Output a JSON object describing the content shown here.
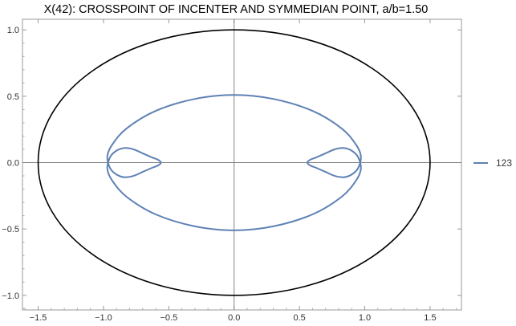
{
  "chart_data": {
    "type": "line",
    "title": "X(42): CROSSPOINT OF INCENTER AND SYMMEDIAN POINT, a/b=1.50",
    "xlabel": "",
    "ylabel": "",
    "xlim": [
      -1.62,
      1.74
    ],
    "ylim": [
      -1.11,
      1.08
    ],
    "x_ticks": [
      -1.5,
      -1.0,
      -0.5,
      0.0,
      0.5,
      1.0,
      1.5
    ],
    "x_tick_labels": [
      "−1.5",
      "−1.0",
      "−0.5",
      "0.0",
      "0.5",
      "1.0",
      "1.5"
    ],
    "y_ticks": [
      -1.0,
      -0.5,
      0.0,
      0.5,
      1.0
    ],
    "y_tick_labels": [
      "−1.0",
      "−0.5",
      "0.0",
      "0.5",
      "1.0"
    ],
    "grid": false,
    "frame": true,
    "axes_through_origin": true,
    "legend_position": "right",
    "colors": {
      "outer_ellipse": "#000000",
      "locus": "#5e81b5",
      "axes": "#808080",
      "frame": "#999999"
    },
    "series": [
      {
        "name": "",
        "role": "outer ellipse",
        "color": "#000000",
        "shape": "ellipse",
        "center": [
          0,
          0
        ],
        "semi_axes": [
          1.5,
          1.0
        ]
      },
      {
        "name": "123",
        "role": "locus",
        "color": "#5e81b5",
        "x": [
          0.0,
          0.3,
          0.6,
          0.82,
          0.93,
          0.97,
          0.95,
          0.9,
          0.84,
          0.77,
          0.7,
          0.63,
          0.58,
          0.56,
          0.58,
          0.63,
          0.7,
          0.77,
          0.84,
          0.9,
          0.95,
          0.97,
          0.93,
          0.82,
          0.6,
          0.3,
          0.0,
          -0.3,
          -0.6,
          -0.82,
          -0.93,
          -0.97,
          -0.95,
          -0.9,
          -0.84,
          -0.77,
          -0.7,
          -0.63,
          -0.58,
          -0.56,
          -0.58,
          -0.63,
          -0.7,
          -0.77,
          -0.84,
          -0.9,
          -0.95,
          -0.97,
          -0.93,
          -0.82,
          -0.6,
          -0.3,
          0.0
        ],
        "y": [
          0.51,
          0.48,
          0.39,
          0.26,
          0.14,
          0.05,
          -0.04,
          -0.09,
          -0.11,
          -0.1,
          -0.07,
          -0.04,
          -0.02,
          0.0,
          0.02,
          0.04,
          0.07,
          0.1,
          0.11,
          0.09,
          0.04,
          -0.05,
          -0.14,
          -0.26,
          -0.39,
          -0.48,
          -0.51,
          -0.48,
          -0.39,
          -0.26,
          -0.14,
          -0.05,
          0.04,
          0.09,
          0.11,
          0.1,
          0.07,
          0.04,
          0.02,
          0.0,
          -0.02,
          -0.04,
          -0.07,
          -0.1,
          -0.11,
          -0.09,
          -0.04,
          0.05,
          0.14,
          0.26,
          0.39,
          0.48,
          0.51
        ]
      }
    ]
  }
}
